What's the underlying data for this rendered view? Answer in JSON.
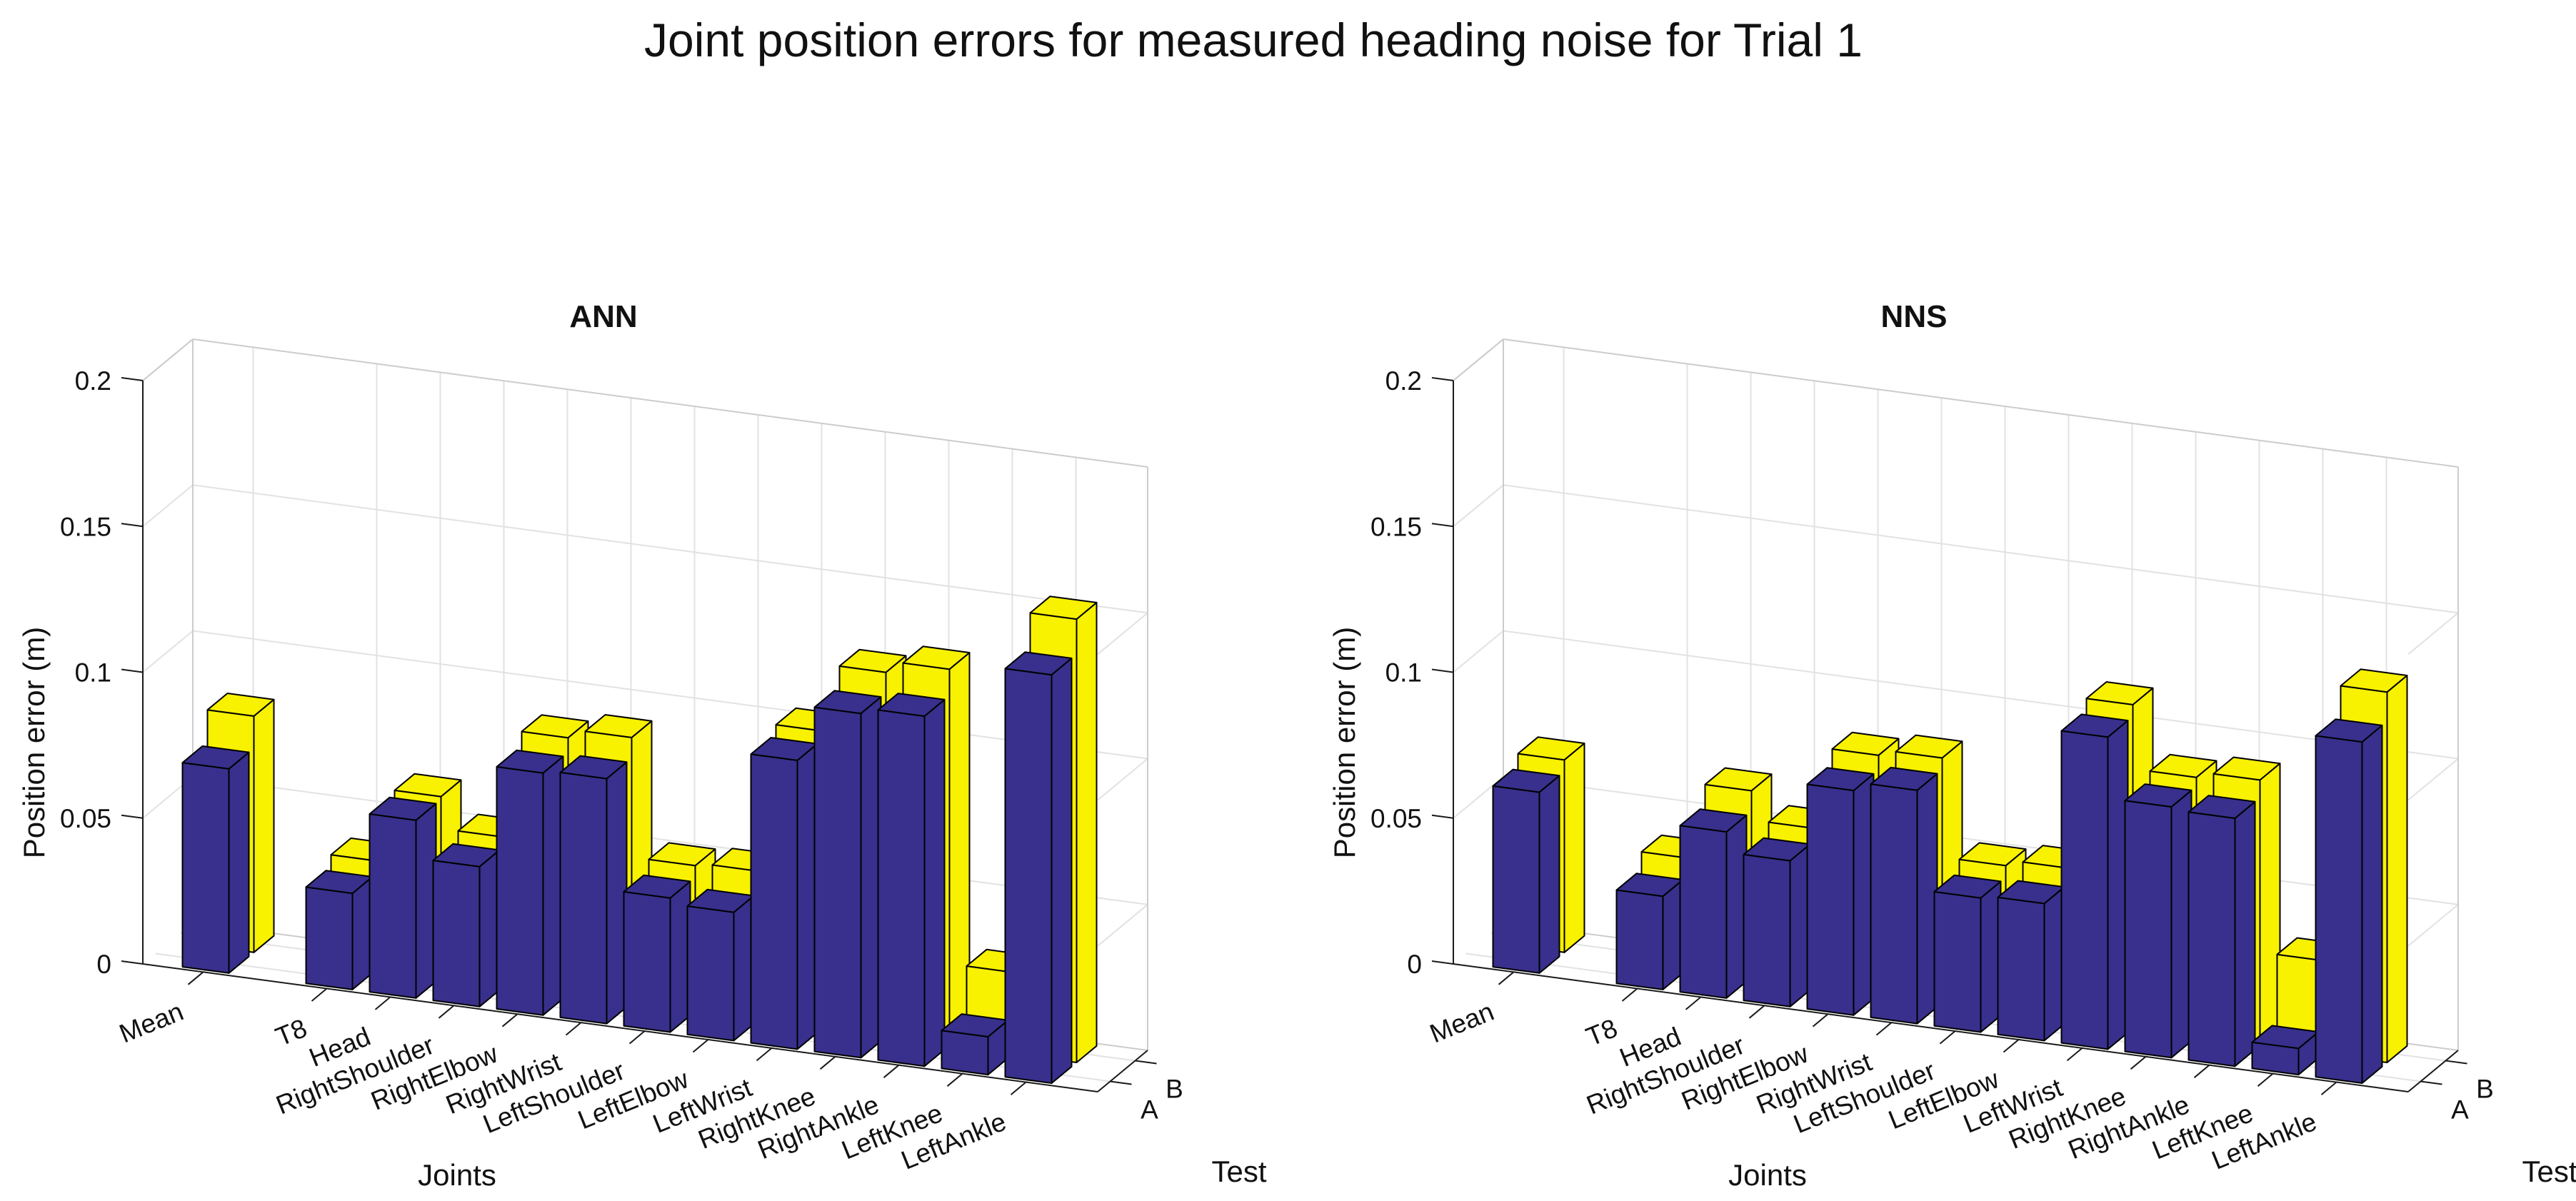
{
  "figure_title": "Joint position errors for measured heading noise for Trial 1",
  "colors": {
    "bar_a": "#38308C",
    "bar_b": "#F8F100",
    "edge": "#000000",
    "grid": "#E2E2E2",
    "box": "#CCCCCC",
    "axis": "#1A1A1A",
    "text": "#111111"
  },
  "chart_data": [
    {
      "type": "bar",
      "subtype": "bar3d-grouped",
      "title": "ANN",
      "xlabel": "Joints",
      "depth_label": "Test",
      "zlabel": "Position error (m)",
      "zlim": [
        0,
        0.2
      ],
      "zticks": [
        0,
        0.05,
        0.1,
        0.15,
        0.2
      ],
      "ztick_labels": [
        "0",
        "0.05",
        "0.1",
        "0.15",
        "0.2"
      ],
      "grid": true,
      "legend_position": "none",
      "categories": [
        "Mean",
        "T8",
        "Head",
        "RightShoulder",
        "RightElbow",
        "RightWrist",
        "LeftShoulder",
        "LeftElbow",
        "LeftWrist",
        "RightKnee",
        "RightAnkle",
        "LeftKnee",
        "LeftAnkle"
      ],
      "depth_ticks": [
        "A",
        "B"
      ],
      "series": [
        {
          "name": "A",
          "color": "#38308C",
          "values": [
            0.07,
            0.033,
            0.061,
            0.048,
            0.083,
            0.084,
            0.046,
            0.044,
            0.099,
            0.118,
            0.12,
            0.013,
            0.14
          ]
        },
        {
          "name": "B",
          "color": "#F8F100",
          "values": [
            0.081,
            0.037,
            0.062,
            0.051,
            0.088,
            0.091,
            0.05,
            0.051,
            0.102,
            0.125,
            0.129,
            0.028,
            0.152
          ]
        }
      ]
    },
    {
      "type": "bar",
      "subtype": "bar3d-grouped",
      "title": "NNS",
      "xlabel": "Joints",
      "depth_label": "Test",
      "zlabel": "Position error (m)",
      "zlim": [
        0,
        0.2
      ],
      "zticks": [
        0,
        0.05,
        0.1,
        0.15,
        0.2
      ],
      "ztick_labels": [
        "0",
        "0.05",
        "0.1",
        "0.15",
        "0.2"
      ],
      "grid": true,
      "legend_position": "none",
      "categories": [
        "Mean",
        "T8",
        "Head",
        "RightShoulder",
        "RightElbow",
        "RightWrist",
        "LeftShoulder",
        "LeftElbow",
        "LeftWrist",
        "RightKnee",
        "RightAnkle",
        "LeftKnee",
        "LeftAnkle"
      ],
      "depth_ticks": [
        "A",
        "B"
      ],
      "series": [
        {
          "name": "A",
          "color": "#38308C",
          "values": [
            0.062,
            0.032,
            0.057,
            0.05,
            0.077,
            0.08,
            0.046,
            0.047,
            0.107,
            0.086,
            0.085,
            0.009,
            0.117
          ]
        },
        {
          "name": "B",
          "color": "#F8F100",
          "values": [
            0.066,
            0.038,
            0.064,
            0.054,
            0.082,
            0.084,
            0.05,
            0.052,
            0.111,
            0.089,
            0.091,
            0.032,
            0.127
          ]
        }
      ]
    }
  ]
}
